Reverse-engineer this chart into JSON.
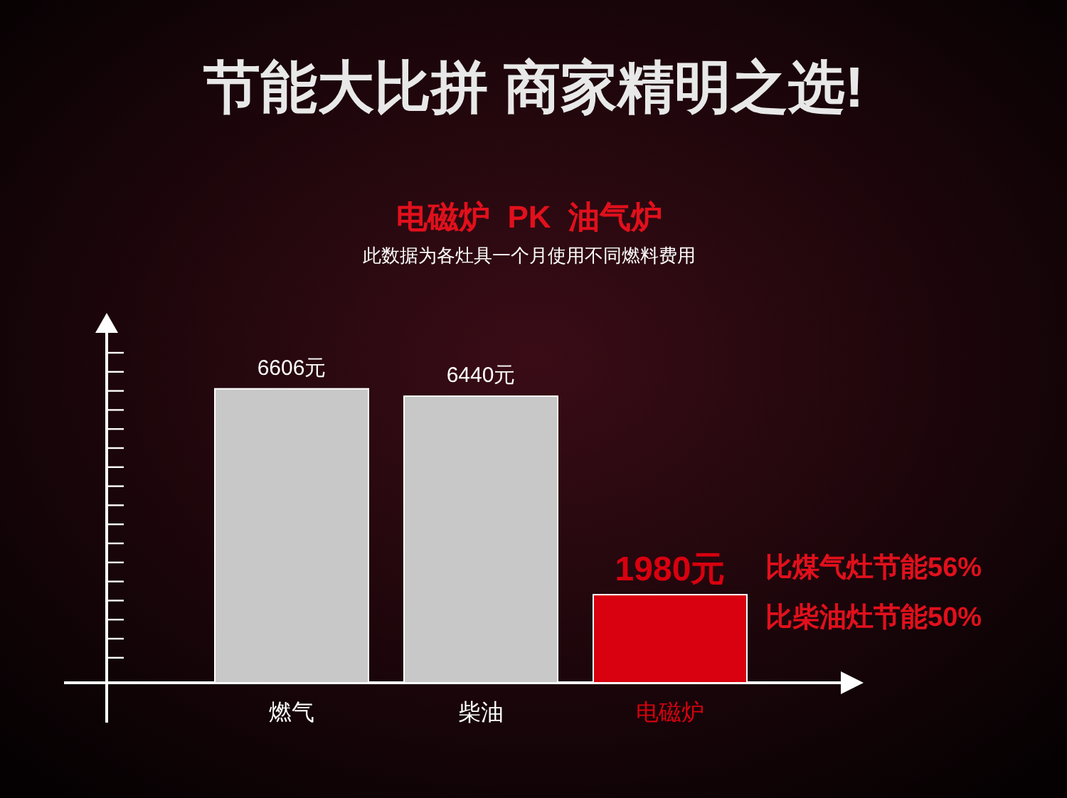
{
  "chart_data": {
    "type": "bar",
    "title": "节能大比拼 商家精明之选!",
    "subtitle": "电磁炉  PK  油气炉",
    "annotations": [
      "此数据为各灶具一个月使用不同燃料费用",
      "比煤气灶节能56%",
      "比柴油灶节能50%"
    ],
    "categories": [
      "燃气",
      "柴油",
      "电磁炉"
    ],
    "values": [
      6606,
      6440,
      1980
    ],
    "value_labels": [
      "6606元",
      "6440元",
      "1980元"
    ],
    "colors": [
      "#c8c8c8",
      "#c8c8c8",
      "#d9000f"
    ],
    "grid": false
  }
}
